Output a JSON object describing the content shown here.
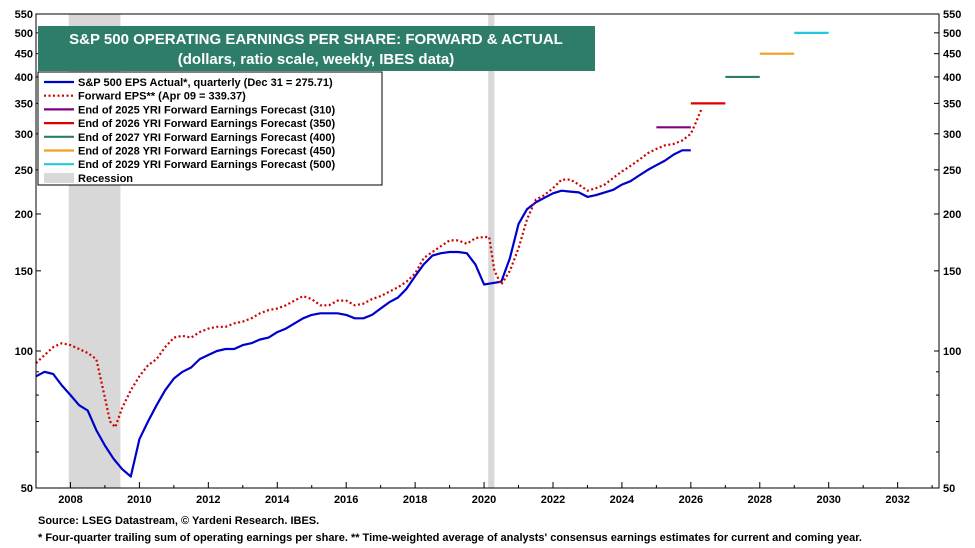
{
  "chart_data": {
    "type": "line",
    "title": "S&P 500 OPERATING EARNINGS PER SHARE: FORWARD & ACTUAL",
    "subtitle": "(dollars, ratio scale, weekly, IBES data)",
    "scale": "log",
    "ylim": [
      50,
      550
    ],
    "xlim": [
      2007.0,
      2033.2
    ],
    "y_ticks": [
      50,
      100,
      150,
      200,
      250,
      300,
      350,
      400,
      450,
      500,
      550
    ],
    "x_ticks": [
      "2008",
      "2010",
      "2012",
      "2014",
      "2016",
      "2018",
      "2020",
      "2022",
      "2024",
      "2026",
      "2028",
      "2030",
      "2032"
    ],
    "x_tick_values": [
      2008,
      2010,
      2012,
      2014,
      2016,
      2018,
      2020,
      2022,
      2024,
      2026,
      2028,
      2030,
      2032
    ],
    "legend": [
      {
        "label": "S&P 500 EPS Actual*, quarterly (Dec 31 = 275.71)",
        "color": "#0000cc",
        "style": "solid"
      },
      {
        "label": "Forward EPS** (Apr 09 = 339.37)",
        "color": "#cc0000",
        "style": "dotted"
      },
      {
        "label": "End of 2025 YRI Forward Earnings Forecast (310)",
        "color": "#800080",
        "style": "solid"
      },
      {
        "label": "End of 2026 YRI Forward Earnings Forecast (350)",
        "color": "#dd0000",
        "style": "solid"
      },
      {
        "label": "End of 2027 YRI Forward Earnings Forecast (400)",
        "color": "#2e7d6b",
        "style": "solid"
      },
      {
        "label": "End of 2028 YRI Forward Earnings Forecast (450)",
        "color": "#f0a020",
        "style": "solid"
      },
      {
        "label": "End of 2029 YRI Forward Earnings Forecast (500)",
        "color": "#22c8e0",
        "style": "solid"
      },
      {
        "label": "Recession",
        "color": "#d8d8d8",
        "style": "band"
      }
    ],
    "recessions": [
      [
        2007.95,
        2009.45
      ],
      [
        2020.12,
        2020.3
      ]
    ],
    "series": [
      {
        "name": "S&P 500 EPS Actual*, quarterly (Dec 31 = 275.71)",
        "color": "#0000cc",
        "x": [
          2007.0,
          2007.25,
          2007.5,
          2007.75,
          2008.0,
          2008.25,
          2008.5,
          2008.75,
          2009.0,
          2009.25,
          2009.5,
          2009.75,
          2010.0,
          2010.25,
          2010.5,
          2010.75,
          2011.0,
          2011.25,
          2011.5,
          2011.75,
          2012.0,
          2012.25,
          2012.5,
          2012.75,
          2013.0,
          2013.25,
          2013.5,
          2013.75,
          2014.0,
          2014.25,
          2014.5,
          2014.75,
          2015.0,
          2015.25,
          2015.5,
          2015.75,
          2016.0,
          2016.25,
          2016.5,
          2016.75,
          2017.0,
          2017.25,
          2017.5,
          2017.75,
          2018.0,
          2018.25,
          2018.5,
          2018.75,
          2019.0,
          2019.25,
          2019.5,
          2019.75,
          2020.0,
          2020.25,
          2020.5,
          2020.75,
          2021.0,
          2021.25,
          2021.5,
          2021.75,
          2022.0,
          2022.25,
          2022.5,
          2022.75,
          2023.0,
          2023.25,
          2023.5,
          2023.75,
          2024.0,
          2024.25,
          2024.5,
          2024.75,
          2025.0,
          2025.25,
          2025.5,
          2025.75,
          2026.0
        ],
        "values": [
          88,
          90,
          89,
          84,
          80,
          76,
          74,
          67,
          62,
          58,
          55,
          53,
          64,
          70,
          76,
          82,
          87,
          90,
          92,
          96,
          98,
          100,
          101,
          101,
          103,
          104,
          106,
          107,
          110,
          112,
          115,
          118,
          120,
          121,
          121,
          121,
          120,
          118,
          118,
          120,
          124,
          128,
          131,
          137,
          146,
          155,
          162,
          164,
          165,
          165,
          164,
          155,
          140,
          141,
          142,
          160,
          190,
          205,
          212,
          217,
          222,
          225,
          224,
          223,
          218,
          220,
          223,
          226,
          232,
          236,
          243,
          250,
          256,
          262,
          270,
          276,
          276
        ]
      },
      {
        "name": "Forward EPS** (Apr 09 = 339.37)",
        "color": "#cc0000",
        "x": [
          2007.0,
          2007.25,
          2007.5,
          2007.75,
          2008.0,
          2008.25,
          2008.5,
          2008.75,
          2009.0,
          2009.15,
          2009.3,
          2009.5,
          2009.75,
          2010.0,
          2010.25,
          2010.5,
          2010.75,
          2011.0,
          2011.25,
          2011.5,
          2011.75,
          2012.0,
          2012.25,
          2012.5,
          2012.75,
          2013.0,
          2013.25,
          2013.5,
          2013.75,
          2014.0,
          2014.25,
          2014.5,
          2014.75,
          2015.0,
          2015.25,
          2015.5,
          2015.75,
          2016.0,
          2016.25,
          2016.5,
          2016.75,
          2017.0,
          2017.25,
          2017.5,
          2017.75,
          2018.0,
          2018.25,
          2018.5,
          2018.75,
          2019.0,
          2019.25,
          2019.5,
          2019.75,
          2020.0,
          2020.15,
          2020.3,
          2020.5,
          2020.75,
          2021.0,
          2021.25,
          2021.5,
          2021.75,
          2022.0,
          2022.25,
          2022.5,
          2022.75,
          2023.0,
          2023.25,
          2023.5,
          2023.75,
          2024.0,
          2024.25,
          2024.5,
          2024.75,
          2025.0,
          2025.25,
          2025.5,
          2025.75,
          2026.0,
          2026.15,
          2026.3
        ],
        "values": [
          94,
          98,
          102,
          104,
          103,
          101,
          99,
          96,
          79,
          70,
          68,
          75,
          82,
          88,
          93,
          96,
          102,
          107,
          108,
          107,
          110,
          112,
          113,
          113,
          115,
          116,
          118,
          121,
          123,
          124,
          126,
          129,
          132,
          130,
          126,
          126,
          129,
          129,
          126,
          127,
          130,
          132,
          135,
          138,
          142,
          148,
          160,
          165,
          170,
          175,
          175,
          172,
          177,
          178,
          178,
          150,
          140,
          150,
          168,
          195,
          215,
          220,
          228,
          238,
          238,
          232,
          225,
          228,
          232,
          240,
          248,
          255,
          263,
          272,
          278,
          283,
          285,
          290,
          300,
          318,
          339
        ]
      }
    ],
    "forecast_lines": [
      {
        "label": "End of 2025 YRI Forward Earnings Forecast (310)",
        "color": "#800080",
        "x": [
          2025.0,
          2026.0
        ],
        "value": 310
      },
      {
        "label": "End of 2026 YRI Forward Earnings Forecast (350)",
        "color": "#dd0000",
        "x": [
          2026.0,
          2027.0
        ],
        "value": 350
      },
      {
        "label": "End of 2027 YRI Forward Earnings Forecast (400)",
        "color": "#2e7d6b",
        "x": [
          2027.0,
          2028.0
        ],
        "value": 400
      },
      {
        "label": "End of 2028 YRI Forward Earnings Forecast (450)",
        "color": "#f0a020",
        "x": [
          2028.0,
          2029.0
        ],
        "value": 450
      },
      {
        "label": "End of 2029 YRI Forward Earnings Forecast (500)",
        "color": "#22c8e0",
        "x": [
          2029.0,
          2030.0
        ],
        "value": 500
      }
    ]
  },
  "footer": {
    "source": "Source: LSEG Datastream, © Yardeni Research. IBES.",
    "footnote": "* Four-quarter trailing sum of operating earnings per share.   ** Time-weighted average of analysts' consensus earnings estimates for current and coming year."
  },
  "colors": {
    "title_bg": "#2e7d6b",
    "title_text": "#ffffff",
    "recession": "#d8d8d8"
  }
}
